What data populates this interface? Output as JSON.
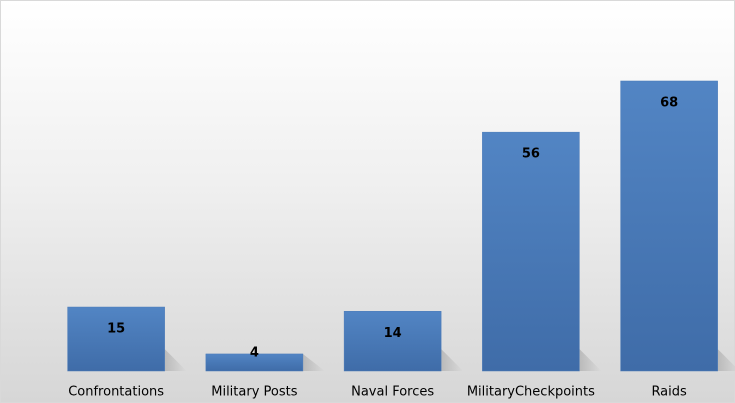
{
  "chart_data": {
    "type": "bar",
    "categories": [
      "Confrontations",
      "Military Posts",
      "Naval Forces",
      "MilitaryCheckpoints",
      "Raids"
    ],
    "values": [
      15,
      4,
      14,
      56,
      68
    ],
    "color": "#4a7ab8"
  }
}
